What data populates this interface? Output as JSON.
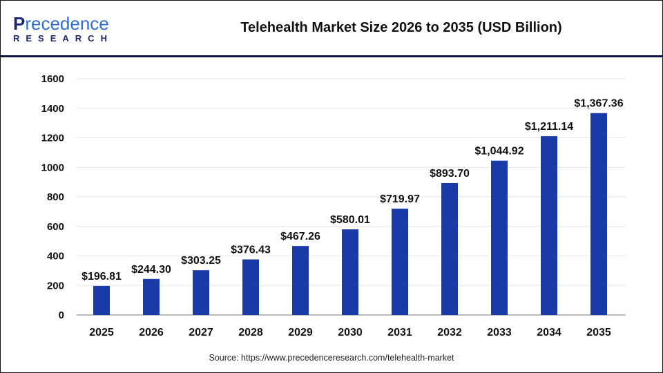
{
  "header": {
    "logo_text": "Precedence Research",
    "title": "Telehealth Market Size 2026 to 2035 (USD Billion)"
  },
  "source": "Source: https://www.precedenceresearch.com/telehealth-market",
  "chart_data": {
    "type": "bar",
    "title": "Telehealth Market Size 2026 to 2035 (USD Billion)",
    "categories": [
      "2025",
      "2026",
      "2027",
      "2028",
      "2029",
      "2030",
      "2031",
      "2032",
      "2033",
      "2034",
      "2035"
    ],
    "values": [
      196.81,
      244.3,
      303.25,
      376.43,
      467.26,
      580.01,
      719.97,
      893.7,
      1044.92,
      1211.14,
      1367.36
    ],
    "data_labels": [
      "$196.81",
      "$244.30",
      "$303.25",
      "$376.43",
      "$467.26",
      "$580.01",
      "$719.97",
      "$893.70",
      "$1,044.92",
      "$1,211.14",
      "$1,367.36"
    ],
    "yticks": [
      "0",
      "200",
      "400",
      "600",
      "800",
      "1000",
      "1200",
      "1400",
      "1600"
    ],
    "ylim": [
      0,
      1600
    ],
    "grid": true,
    "bar_color": "#1a3aa8",
    "xlabel": "",
    "ylabel": ""
  }
}
